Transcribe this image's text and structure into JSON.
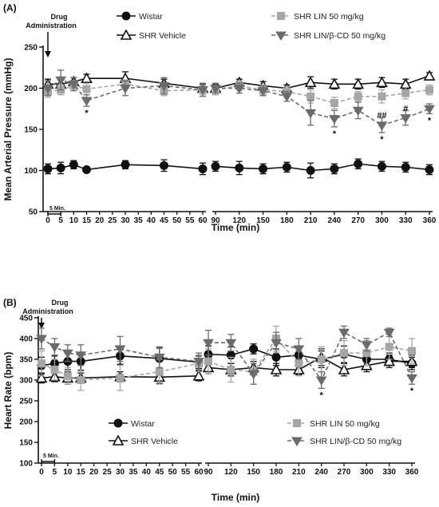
{
  "chart_data": [
    {
      "panel": "(A)",
      "type": "line",
      "ylabel": "Mean Arterial Pressure (mmHg)",
      "xlabel": "Time (min)",
      "ylim": [
        50,
        250
      ],
      "yticks": [
        50,
        100,
        150,
        200,
        250
      ],
      "xticks": [
        0,
        5,
        10,
        15,
        20,
        25,
        30,
        35,
        40,
        45,
        50,
        55,
        60,
        90,
        120,
        150,
        180,
        210,
        240,
        270,
        300,
        330,
        360
      ],
      "annotation": "Drug\nAdministration",
      "scale_bar_label": "5 Min.",
      "series": [
        {
          "name": "Wistar",
          "color": "#111111",
          "marker": "circle",
          "dash": "solid",
          "x": [
            0,
            5,
            10,
            15,
            30,
            45,
            60,
            90,
            120,
            150,
            180,
            210,
            240,
            270,
            300,
            330,
            360
          ],
          "values": [
            102,
            103,
            107,
            101,
            107,
            106,
            102,
            105,
            103,
            102,
            104,
            100,
            102,
            108,
            105,
            104,
            101
          ],
          "err": [
            6,
            7,
            5,
            3,
            5,
            7,
            7,
            6,
            8,
            6,
            6,
            9,
            6,
            6,
            6,
            6,
            6
          ]
        },
        {
          "name": "SHR Vehicle",
          "color": "#111111",
          "marker": "triangle-open",
          "dash": "solid",
          "x": [
            0,
            5,
            10,
            15,
            30,
            45,
            60,
            90,
            120,
            150,
            180,
            210,
            240,
            270,
            300,
            330,
            360
          ],
          "values": [
            205,
            205,
            208,
            212,
            212,
            206,
            200,
            200,
            207,
            203,
            200,
            207,
            205,
            205,
            207,
            205,
            215
          ],
          "err": [
            6,
            6,
            5,
            5,
            8,
            5,
            5,
            5,
            4,
            5,
            4,
            7,
            6,
            6,
            6,
            6,
            4
          ]
        },
        {
          "name": "SHR LIN 50 mg/kg",
          "color": "#a6a6a6",
          "marker": "square",
          "dash": "dashed",
          "x": [
            0,
            5,
            10,
            15,
            30,
            45,
            60,
            90,
            120,
            150,
            180,
            210,
            240,
            270,
            300,
            330,
            360
          ],
          "values": [
            196,
            198,
            203,
            199,
            205,
            197,
            198,
            198,
            203,
            198,
            196,
            190,
            182,
            190,
            190,
            194,
            198
          ],
          "err": [
            7,
            6,
            6,
            7,
            5,
            6,
            6,
            6,
            6,
            6,
            6,
            8,
            7,
            6,
            8,
            7,
            6
          ]
        },
        {
          "name": "SHR LIN/β-CD 50 mg/kg",
          "color": "#6b6b6b",
          "marker": "triangle-down",
          "dash": "dashed",
          "x": [
            0,
            5,
            10,
            15,
            30,
            45,
            60,
            90,
            120,
            150,
            180,
            210,
            240,
            270,
            300,
            330,
            360
          ],
          "values": [
            200,
            210,
            205,
            185,
            200,
            203,
            198,
            200,
            200,
            197,
            190,
            170,
            163,
            173,
            155,
            164,
            175
          ],
          "err": [
            9,
            12,
            8,
            7,
            9,
            10,
            8,
            6,
            6,
            6,
            6,
            15,
            10,
            10,
            9,
            9,
            6
          ]
        }
      ],
      "significance": [
        {
          "x": 15,
          "label": "*"
        },
        {
          "x": 240,
          "label": "*"
        },
        {
          "x": 300,
          "label": "##"
        },
        {
          "x": 300,
          "label": "*"
        },
        {
          "x": 330,
          "label": "#"
        },
        {
          "x": 360,
          "label": "*"
        }
      ]
    },
    {
      "panel": "(B)",
      "type": "line",
      "ylabel": "Heart Rate (bpm)",
      "xlabel": "Time (min)",
      "ylim": [
        100,
        450
      ],
      "yticks": [
        100,
        150,
        200,
        250,
        300,
        350,
        400,
        450
      ],
      "xticks": [
        0,
        5,
        10,
        15,
        20,
        25,
        30,
        35,
        40,
        45,
        50,
        55,
        60,
        90,
        120,
        150,
        180,
        210,
        240,
        270,
        300,
        330,
        360
      ],
      "annotation": "Drug\nAdministration",
      "scale_bar_label": "5 Min.",
      "series": [
        {
          "name": "Wistar",
          "color": "#111111",
          "marker": "circle",
          "dash": "solid",
          "x": [
            0,
            5,
            10,
            15,
            30,
            45,
            60,
            90,
            120,
            150,
            180,
            210,
            240,
            270,
            300,
            330,
            360
          ],
          "values": [
            335,
            340,
            345,
            345,
            358,
            352,
            343,
            362,
            360,
            375,
            355,
            360,
            350,
            362,
            350,
            350,
            340
          ],
          "err": [
            20,
            18,
            20,
            22,
            20,
            25,
            15,
            20,
            20,
            12,
            20,
            20,
            20,
            20,
            20,
            15,
            15
          ]
        },
        {
          "name": "SHR Vehicle",
          "color": "#111111",
          "marker": "triangle-open",
          "dash": "solid",
          "x": [
            0,
            5,
            10,
            15,
            30,
            45,
            60,
            90,
            120,
            150,
            180,
            210,
            240,
            270,
            300,
            330,
            360
          ],
          "values": [
            305,
            308,
            305,
            305,
            308,
            307,
            310,
            330,
            325,
            330,
            325,
            325,
            355,
            325,
            335,
            345,
            345
          ],
          "err": [
            12,
            12,
            15,
            12,
            12,
            15,
            12,
            15,
            15,
            15,
            15,
            12,
            20,
            15,
            15,
            15,
            15
          ]
        },
        {
          "name": "SHR LIN 50 mg/kg",
          "color": "#a6a6a6",
          "marker": "square",
          "dash": "dashed",
          "x": [
            0,
            5,
            10,
            15,
            30,
            45,
            60,
            90,
            120,
            150,
            180,
            210,
            240,
            270,
            300,
            330,
            360
          ],
          "values": [
            340,
            325,
            310,
            300,
            305,
            320,
            340,
            345,
            325,
            320,
            400,
            340,
            350,
            365,
            365,
            380,
            370
          ],
          "err": [
            30,
            25,
            20,
            25,
            30,
            30,
            20,
            30,
            30,
            30,
            30,
            30,
            30,
            30,
            30,
            30,
            30
          ]
        },
        {
          "name": "SHR LIN/β-CD 50 mg/kg",
          "color": "#6b6b6b",
          "marker": "triangle-down",
          "dash": "dashed",
          "x": [
            0,
            5,
            10,
            15,
            30,
            45,
            60,
            90,
            120,
            150,
            180,
            210,
            240,
            270,
            300,
            330,
            360
          ],
          "values": [
            400,
            380,
            365,
            360,
            375,
            355,
            345,
            390,
            390,
            315,
            390,
            375,
            300,
            415,
            385,
            415,
            305
          ],
          "err": [
            25,
            20,
            20,
            25,
            30,
            25,
            20,
            30,
            20,
            25,
            25,
            25,
            20,
            15,
            15,
            10,
            15
          ]
        }
      ],
      "significance": [
        {
          "x": 240,
          "label": "*"
        },
        {
          "x": 360,
          "label": "*"
        }
      ]
    }
  ]
}
